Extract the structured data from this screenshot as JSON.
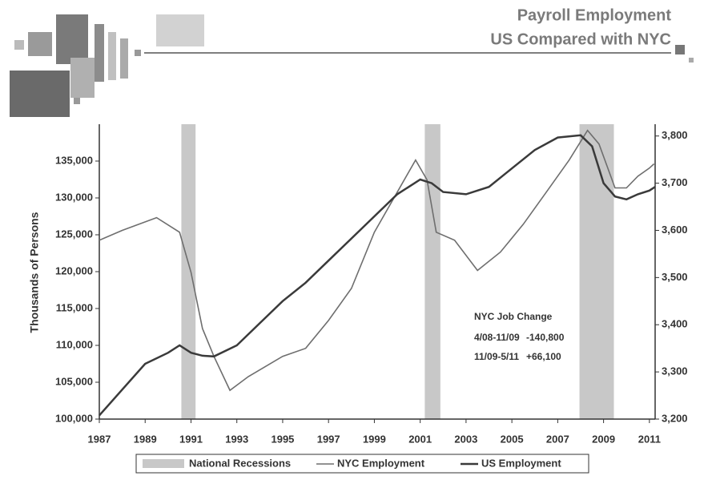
{
  "chart_data": {
    "type": "line",
    "title": "Payroll Employment",
    "subtitle": "US Compared with NYC",
    "ylabel": "Thousands of Persons",
    "xlim": [
      1987,
      2011.25
    ],
    "xticks": [
      1987,
      1989,
      1991,
      1993,
      1995,
      1997,
      1999,
      2001,
      2003,
      2005,
      2007,
      2009,
      2011
    ],
    "ylim": [
      100000,
      140000
    ],
    "yticks": [
      {
        "value": 100000,
        "label": "100,000"
      },
      {
        "value": 105000,
        "label": "105,000"
      },
      {
        "value": 110000,
        "label": "110,000"
      },
      {
        "value": 115000,
        "label": "115,000"
      },
      {
        "value": 120000,
        "label": "120,000"
      },
      {
        "value": 125000,
        "label": "125,000"
      },
      {
        "value": 130000,
        "label": "130,000"
      },
      {
        "value": 135000,
        "label": "135,000"
      }
    ],
    "y2lim": [
      3200,
      3825
    ],
    "y2ticks": [
      {
        "value": 3200,
        "label": "3,200"
      },
      {
        "value": 3300,
        "label": "3,300"
      },
      {
        "value": 3400,
        "label": "3,400"
      },
      {
        "value": 3500,
        "label": "3,500"
      },
      {
        "value": 3600,
        "label": "3,600"
      },
      {
        "value": 3700,
        "label": "3,700"
      },
      {
        "value": 3800,
        "label": "3,800"
      }
    ],
    "recessions": {
      "name": "National Recessions",
      "color": "#c8c8c8",
      "spans": [
        [
          1990.58,
          1991.2
        ],
        [
          2001.2,
          2001.88
        ],
        [
          2007.95,
          2009.45
        ]
      ]
    },
    "series": [
      {
        "name": "NYC Employment",
        "color": "#6e6e6e",
        "axis": "y2",
        "x": [
          1987,
          1988,
          1989.5,
          1990.5,
          1991,
          1991.5,
          1992,
          1992.7,
          1993.5,
          1995,
          1996,
          1997,
          1998,
          1999,
          2000,
          2000.8,
          2001.3,
          2001.7,
          2002.5,
          2003.5,
          2004.5,
          2005.5,
          2006.5,
          2007.5,
          2008.3,
          2008.8,
          2009.5,
          2010,
          2010.5,
          2011,
          2011.2
        ],
        "values": [
          3579,
          3600,
          3627,
          3596,
          3511,
          3392,
          3333,
          3261,
          3290,
          3333,
          3350,
          3409,
          3477,
          3596,
          3681,
          3749,
          3707,
          3596,
          3579,
          3515,
          3554,
          3613,
          3681,
          3749,
          3812,
          3783,
          3690,
          3690,
          3715,
          3732,
          3741
        ]
      },
      {
        "name": "US Employment",
        "color": "#3a3a3a",
        "x": [
          1987,
          1988,
          1989,
          1990,
          1990.5,
          1991,
          1991.5,
          1992,
          1993,
          1994,
          1995,
          1996,
          1997,
          1998,
          1999,
          2000,
          2001,
          2001.5,
          2002,
          2003,
          2004,
          2005,
          2006,
          2007,
          2008,
          2008.5,
          2009,
          2009.5,
          2010,
          2010.5,
          2011,
          2011.25
        ],
        "values": [
          100500,
          104000,
          107500,
          109000,
          110000,
          109000,
          108600,
          108500,
          110000,
          113000,
          116000,
          118500,
          121500,
          124500,
          127500,
          130500,
          132500,
          132000,
          130800,
          130500,
          131500,
          134000,
          136500,
          138200,
          138500,
          137000,
          132000,
          130200,
          129800,
          130500,
          131000,
          131500
        ]
      }
    ],
    "annotation": {
      "title": "NYC Job Change",
      "lines": [
        [
          "4/08-11/09",
          "-140,800"
        ],
        [
          "11/09-5/11",
          "+66,100"
        ]
      ]
    }
  }
}
